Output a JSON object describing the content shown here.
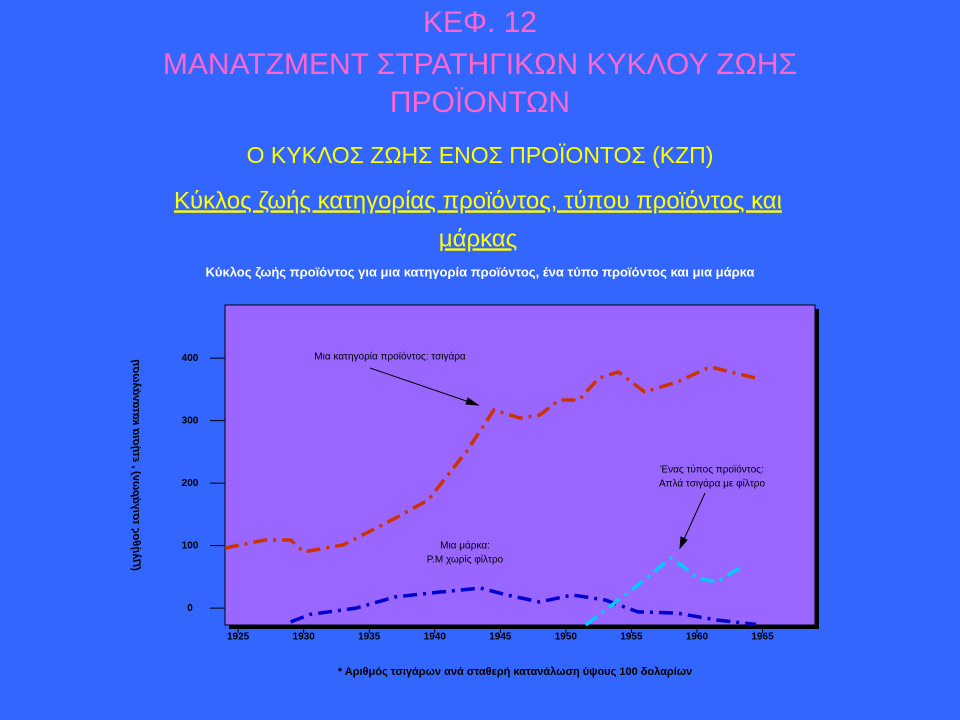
{
  "slide": {
    "title_lines": [
      "ΚΕΦ. 12",
      "ΜΑΝΑΤΖΜΕΝΤ ΣΤΡΑΤΗΓΙΚΩΝ ΚΥΚΛΟΥ ΖΩΗΣ",
      "ΠΡΟΪΟΝΤΩΝ"
    ],
    "subtitle": "Ο ΚΥΚΛΟΣ ΖΩΗΣ ΕΝΟΣ ΠΡΟΪΟΝΤΟΣ (ΚΖΠ)",
    "heading_lines": [
      "Κύκλος ζωής κατηγορίας προϊόντος, τύπου προϊόντος και",
      "μάρκας"
    ]
  },
  "chart_data": {
    "type": "line",
    "title": "Κύκλος ζωής προϊόντος για μια κατηγορία προϊόντος, ένα τύπο προϊόντος και μια μάρκα",
    "x_label": "* Αριθμός τσιγάρων ανά σταθερή κατανάλωση ύψους 100 δολαρίων",
    "y_label": "(Πλήθος τσιγάρων) , ετήσια κατανάλωση",
    "xlim": [
      1924,
      1969
    ],
    "xticks": [
      1925,
      1930,
      1935,
      1940,
      1945,
      1950,
      1955,
      1960,
      1965
    ],
    "ylim": [
      -27,
      485
    ],
    "yticks": [
      0,
      100,
      200,
      300,
      400
    ],
    "series": [
      {
        "name": "Μια κατηγορία προϊόντος: τσιγάρα",
        "color": "#cc3300",
        "x": [
          1924,
          1927,
          1929,
          1930,
          1933,
          1937,
          1939.5,
          1942.5,
          1944.5,
          1946.5,
          1948,
          1949.5,
          1951,
          1952.5,
          1954,
          1956,
          1958.5,
          1961,
          1964.5
        ],
        "values": [
          96,
          109,
          109,
          90,
          101,
          144,
          173,
          253,
          317,
          304,
          309,
          333,
          333,
          368,
          378,
          346,
          362,
          386,
          368
        ]
      },
      {
        "name": "Μια μάρκα: P.M χωρίς φίλτρο",
        "color": "#0000cc",
        "x": [
          1929,
          1930.5,
          1934,
          1937,
          1940.5,
          1943.5,
          1945.5,
          1948,
          1950.5,
          1953,
          1955.5,
          1958.5,
          1961.5,
          1964.5
        ],
        "values": [
          -22,
          -10,
          0,
          18,
          26,
          32,
          21,
          10,
          21,
          13,
          -6,
          -8,
          -19,
          -26
        ]
      },
      {
        "name": "Ένας τύπος προϊόντος: Απλά τσιγάρα με φίλτρο",
        "color": "#00ccff",
        "x": [
          1951.5,
          1953.5,
          1955.5,
          1958,
          1959,
          1960,
          1961.5,
          1963.5
        ],
        "values": [
          -27,
          5,
          37,
          80,
          66,
          48,
          42,
          67
        ]
      }
    ],
    "annotations": [
      [
        "Μια κατηγορία προϊόντος: τσιγάρα"
      ],
      [
        "Μια μάρκα:",
        "P.M χωρίς φίλτρο"
      ],
      [
        "Ένας τύπος προϊόντος:",
        "Απλά τσιγάρα με φίλτρο"
      ]
    ]
  }
}
